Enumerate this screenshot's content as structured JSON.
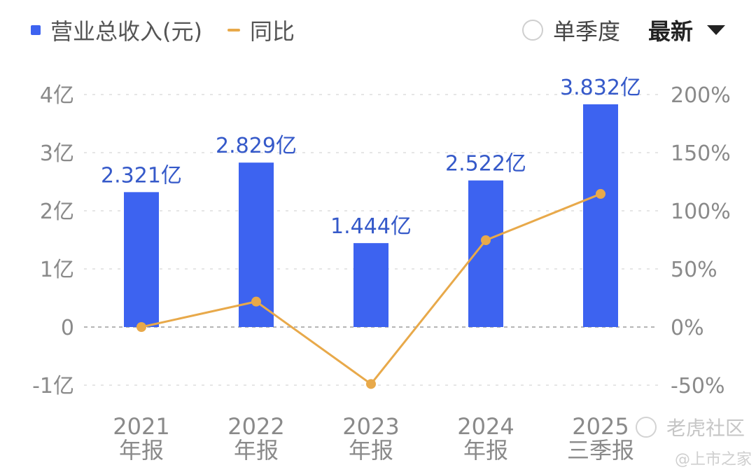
{
  "legend": {
    "bar_label": "营业总收入(元)",
    "line_label": "同比",
    "bar_color": "#3d63f0",
    "line_color": "#e8a94a"
  },
  "controls": {
    "quarter_toggle_label": "单季度",
    "period_select_value": "最新"
  },
  "watermark": {
    "main": "老虎社区",
    "sub": "@上市之家"
  },
  "chart_data": {
    "type": "bar",
    "categories": [
      [
        "2021",
        "年报"
      ],
      [
        "2022",
        "年报"
      ],
      [
        "2023",
        "年报"
      ],
      [
        "2024",
        "年报"
      ],
      [
        "2025",
        "三季报"
      ]
    ],
    "series": [
      {
        "name": "营业总收入(元)",
        "type": "bar",
        "axis": "left",
        "values": [
          2.321,
          2.829,
          1.444,
          2.522,
          3.832
        ],
        "value_labels": [
          "2.321亿",
          "2.829亿",
          "1.444亿",
          "2.522亿",
          "3.832亿"
        ],
        "color": "#3d63f0"
      },
      {
        "name": "同比",
        "type": "line",
        "axis": "right",
        "values": [
          0,
          21.9,
          -49.0,
          74.7,
          114.5
        ],
        "color": "#e8a94a"
      }
    ],
    "y_left": {
      "unit": "亿",
      "range": [
        -1,
        4
      ],
      "ticks": [
        4,
        3,
        2,
        1,
        0,
        -1
      ],
      "tick_labels": [
        "4亿",
        "3亿",
        "2亿",
        "1亿",
        "0",
        "-1亿"
      ]
    },
    "y_right": {
      "unit": "%",
      "range": [
        -50,
        200
      ],
      "ticks": [
        200,
        150,
        100,
        50,
        0,
        -50
      ],
      "tick_labels": [
        "200%",
        "150%",
        "100%",
        "50%",
        "0%",
        "-50%"
      ]
    },
    "grid": "dashed-horizontal",
    "legend_position": "top-left"
  }
}
